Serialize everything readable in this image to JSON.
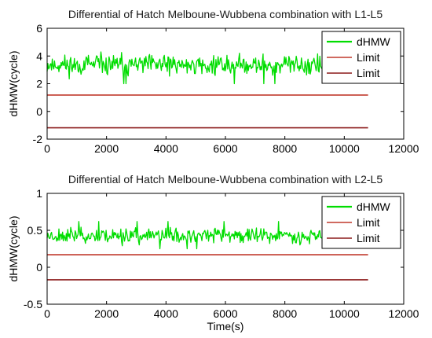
{
  "chart_data": [
    {
      "type": "line",
      "title": "Differential of Hatch Melboune-Wubbena combination with L1-L5",
      "xlabel": "",
      "ylabel": "dHMW(cycle)",
      "xlim": [
        0,
        12000
      ],
      "ylim": [
        -2,
        6
      ],
      "xticks": [
        0,
        2000,
        4000,
        6000,
        8000,
        10000,
        12000
      ],
      "yticks": [
        -2,
        0,
        2,
        4,
        6
      ],
      "grid": false,
      "legend": "top-right",
      "series": [
        {
          "name": "dHMW",
          "color": "#00dd00",
          "style": "noisy",
          "x_range": [
            0,
            9400
          ],
          "n_points": 380,
          "mean": 3.35,
          "min": 2.0,
          "max": 4.6,
          "seed": 11
        },
        {
          "name": "Limit",
          "color": "#c0392b",
          "x": [
            0,
            10800
          ],
          "y": [
            1.18,
            1.18
          ]
        },
        {
          "name": "Limit",
          "color": "#8b1a1a",
          "x": [
            0,
            10800
          ],
          "y": [
            -1.18,
            -1.18
          ]
        }
      ]
    },
    {
      "type": "line",
      "title": "Differential of Hatch Melboune-Wubbena combination with L2-L5",
      "xlabel": "Time(s)",
      "ylabel": "dHMW(cycle)",
      "xlim": [
        0,
        12000
      ],
      "ylim": [
        -0.5,
        1
      ],
      "xticks": [
        0,
        2000,
        4000,
        6000,
        8000,
        10000,
        12000
      ],
      "yticks": [
        -0.5,
        0,
        0.5,
        1
      ],
      "grid": false,
      "legend": "top-right",
      "series": [
        {
          "name": "dHMW",
          "color": "#00dd00",
          "style": "noisy",
          "x_range": [
            0,
            9400
          ],
          "n_points": 380,
          "mean": 0.43,
          "min": 0.25,
          "max": 0.62,
          "seed": 23
        },
        {
          "name": "Limit",
          "color": "#c0392b",
          "x": [
            0,
            10800
          ],
          "y": [
            0.17,
            0.17
          ]
        },
        {
          "name": "Limit",
          "color": "#8b1a1a",
          "x": [
            0,
            10800
          ],
          "y": [
            -0.17,
            -0.17
          ]
        }
      ]
    }
  ]
}
